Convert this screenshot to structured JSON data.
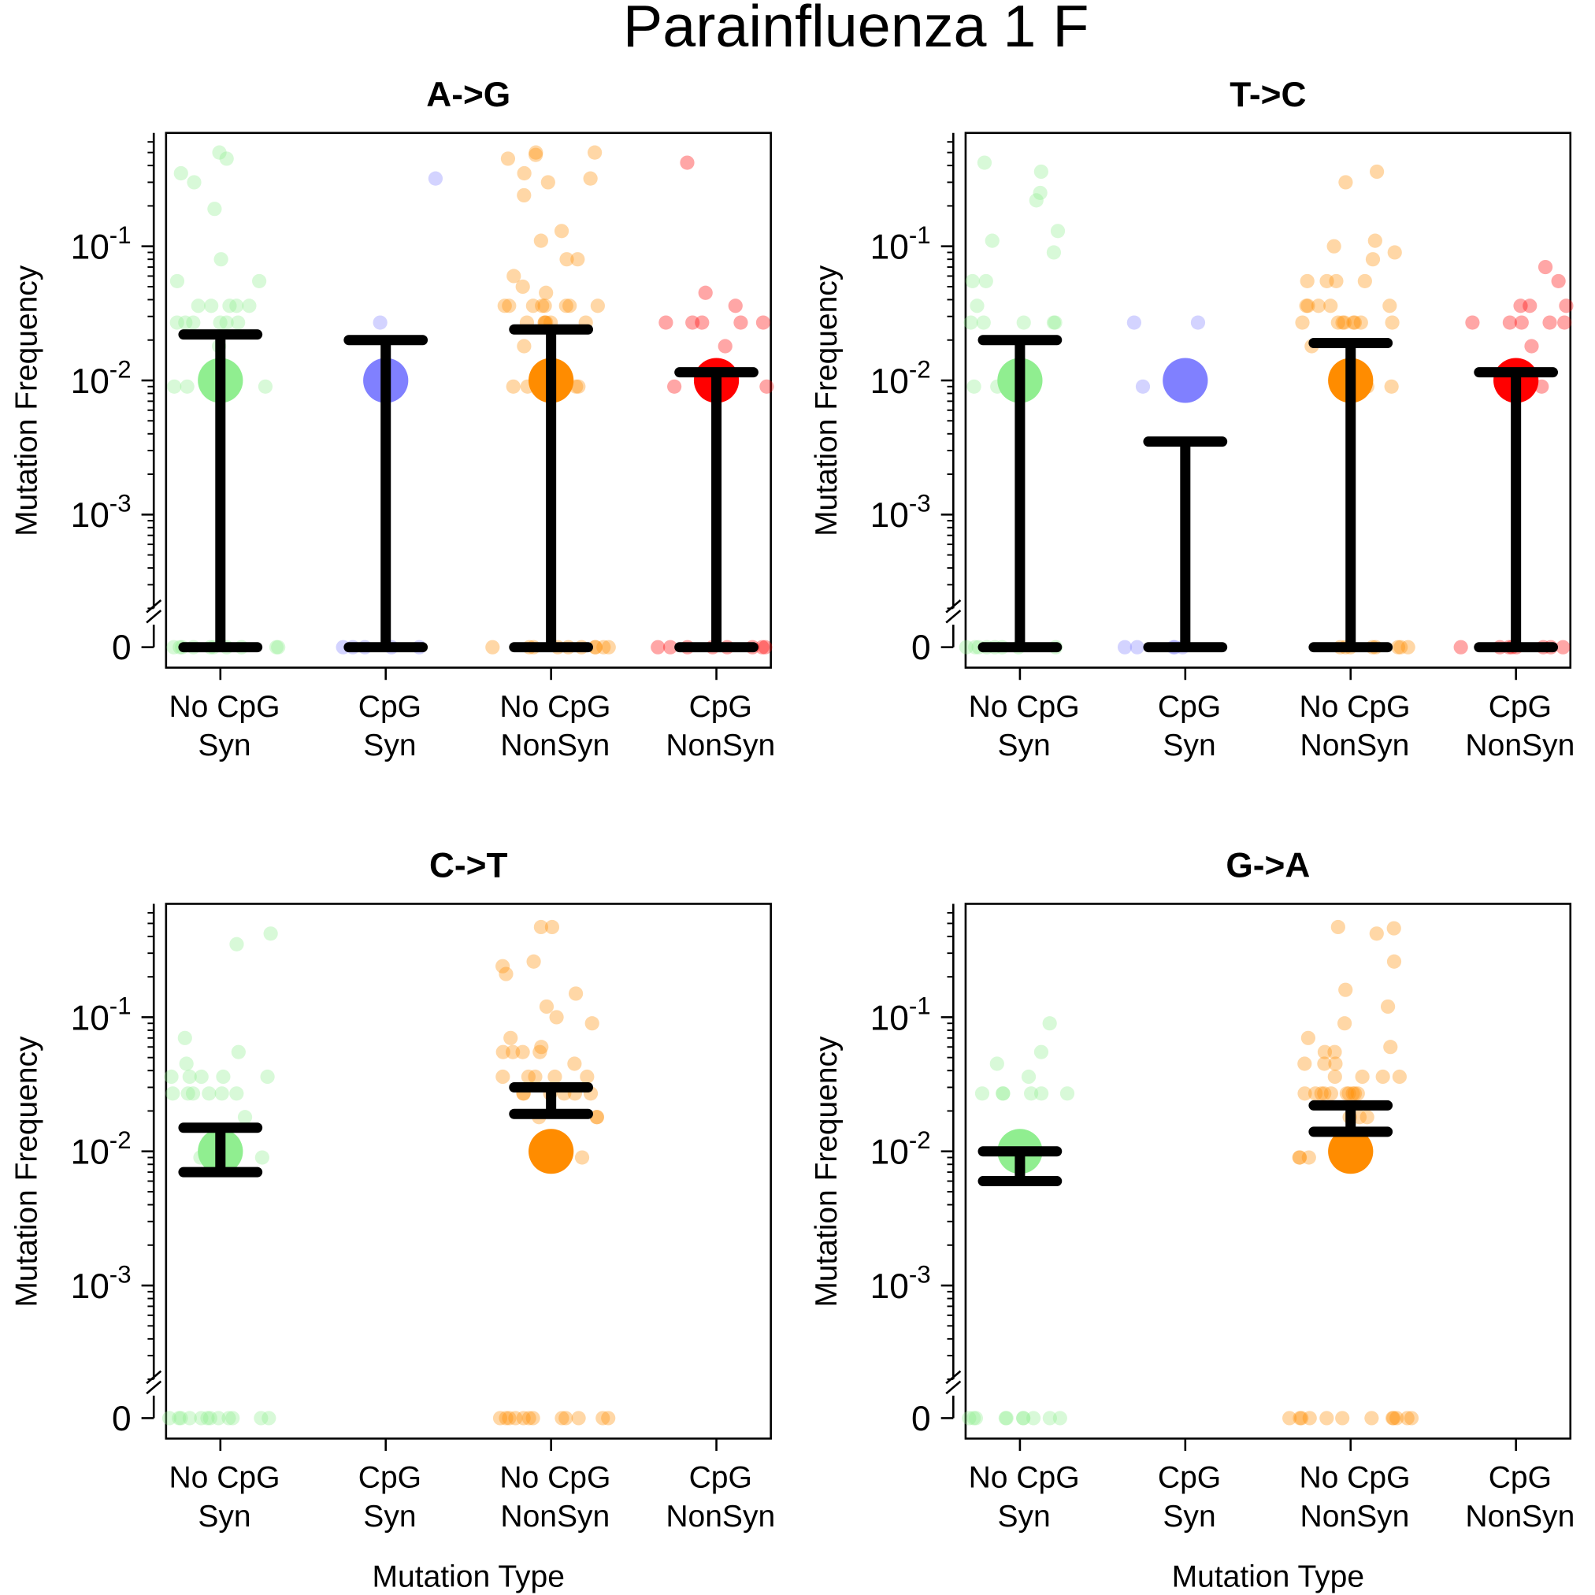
{
  "title": "Parainfluenza 1 F",
  "chart_data": [
    {
      "type": "strip",
      "title": "A->G",
      "ylabel": "Mutation Frequency",
      "log": true,
      "zero_break": true,
      "ylim": [
        0.0002,
        0.7
      ],
      "yticks": [
        0,
        {
          "value": 0.001,
          "label": "10",
          "exponent": "-3"
        },
        {
          "value": 0.01,
          "label": "10",
          "exponent": "-2"
        },
        {
          "value": 0.1,
          "label": "10",
          "exponent": "-1"
        }
      ],
      "categories": [
        [
          "No CpG",
          "Syn"
        ],
        [
          "CpG",
          "Syn"
        ],
        [
          "No CpG",
          "NonSyn"
        ],
        [
          "CpG",
          "NonSyn"
        ]
      ],
      "groups": [
        {
          "color": "#90ee90",
          "mean": 0.01,
          "err_low": 0,
          "err_high": 0.022,
          "points": [
            0.5,
            0.45,
            0.35,
            0.3,
            0.19,
            0.08,
            0.055,
            0.055,
            0.036,
            0.036,
            0.036,
            0.036,
            0.036,
            0.027,
            0.027,
            0.027,
            0.027,
            0.027,
            0.027,
            0.018,
            0.009,
            0.009,
            0.009,
            0,
            0,
            0,
            0,
            0,
            0,
            0,
            0,
            0,
            0
          ]
        },
        {
          "color": "#8080ff",
          "mean": 0.01,
          "err_low": 0,
          "err_high": 0.02,
          "points": [
            0.32,
            0.027,
            0,
            0,
            0,
            0,
            0
          ]
        },
        {
          "color": "#ff8c00",
          "mean": 0.01,
          "err_low": 0,
          "err_high": 0.024,
          "points": [
            0.5,
            0.48,
            0.45,
            0.5,
            0.35,
            0.32,
            0.3,
            0.24,
            0.13,
            0.11,
            0.08,
            0.08,
            0.06,
            0.05,
            0.045,
            0.036,
            0.036,
            0.036,
            0.036,
            0.036,
            0.036,
            0.036,
            0.036,
            0.027,
            0.027,
            0.027,
            0.027,
            0.027,
            0.027,
            0.018,
            0.009,
            0.009,
            0.009,
            0.009,
            0,
            0,
            0,
            0,
            0,
            0,
            0,
            0,
            0,
            0
          ]
        },
        {
          "color": "#ff0000",
          "mean": 0.01,
          "err_low": 0,
          "err_high": 0.0115,
          "points": [
            0.42,
            0.045,
            0.036,
            0.027,
            0.027,
            0.027,
            0.027,
            0.027,
            0.018,
            0.009,
            0.009,
            0.009,
            0.009,
            0,
            0,
            0,
            0,
            0,
            0,
            0,
            0
          ]
        }
      ]
    },
    {
      "type": "strip",
      "title": "T->C",
      "ylabel": "Mutation Frequency",
      "log": true,
      "zero_break": true,
      "ylim": [
        0.0002,
        0.7
      ],
      "yticks": [
        0,
        {
          "value": 0.001,
          "label": "10",
          "exponent": "-3"
        },
        {
          "value": 0.01,
          "label": "10",
          "exponent": "-2"
        },
        {
          "value": 0.1,
          "label": "10",
          "exponent": "-1"
        }
      ],
      "categories": [
        [
          "No CpG",
          "Syn"
        ],
        [
          "CpG",
          "Syn"
        ],
        [
          "No CpG",
          "NonSyn"
        ],
        [
          "CpG",
          "NonSyn"
        ]
      ],
      "groups": [
        {
          "color": "#90ee90",
          "mean": 0.01,
          "err_low": 0,
          "err_high": 0.02,
          "points": [
            0.42,
            0.36,
            0.25,
            0.22,
            0.13,
            0.11,
            0.09,
            0.055,
            0.055,
            0.036,
            0.027,
            0.027,
            0.027,
            0.027,
            0.027,
            0.009,
            0.009,
            0.009,
            0,
            0,
            0,
            0,
            0,
            0,
            0,
            0
          ]
        },
        {
          "color": "#8080ff",
          "mean": 0.01,
          "err_low": 0,
          "err_high": 0.0035,
          "points": [
            0.027,
            0.027,
            0.009,
            0,
            0,
            0,
            0,
            0
          ]
        },
        {
          "color": "#ff8c00",
          "mean": 0.01,
          "err_low": 0,
          "err_high": 0.019,
          "points": [
            0.36,
            0.3,
            0.11,
            0.1,
            0.09,
            0.08,
            0.055,
            0.055,
            0.055,
            0.055,
            0.036,
            0.036,
            0.036,
            0.036,
            0.036,
            0.027,
            0.027,
            0.027,
            0.027,
            0.027,
            0.027,
            0.027,
            0.027,
            0.018,
            0.009,
            0.009,
            0.009,
            0,
            0,
            0,
            0,
            0,
            0,
            0,
            0
          ]
        },
        {
          "color": "#ff0000",
          "mean": 0.01,
          "err_low": 0,
          "err_high": 0.0115,
          "points": [
            0.07,
            0.055,
            0.036,
            0.036,
            0.036,
            0.027,
            0.027,
            0.027,
            0.027,
            0.027,
            0.018,
            0.009,
            0.009,
            0,
            0,
            0,
            0,
            0,
            0,
            0,
            0
          ]
        }
      ]
    },
    {
      "type": "strip",
      "title": "C->T",
      "ylabel": "Mutation Frequency",
      "xlabel": "Mutation Type",
      "log": true,
      "zero_break": true,
      "ylim": [
        0.0002,
        0.7
      ],
      "yticks": [
        0,
        {
          "value": 0.001,
          "label": "10",
          "exponent": "-3"
        },
        {
          "value": 0.01,
          "label": "10",
          "exponent": "-2"
        },
        {
          "value": 0.1,
          "label": "10",
          "exponent": "-1"
        }
      ],
      "categories": [
        [
          "No CpG",
          "Syn"
        ],
        [
          "CpG",
          "Syn"
        ],
        [
          "No CpG",
          "NonSyn"
        ],
        [
          "CpG",
          "NonSyn"
        ]
      ],
      "groups": [
        {
          "color": "#90ee90",
          "mean": 0.01,
          "err_low": 0.007,
          "err_high": 0.015,
          "points": [
            0.42,
            0.35,
            0.07,
            0.055,
            0.045,
            0.036,
            0.036,
            0.036,
            0.036,
            0.036,
            0.027,
            0.027,
            0.027,
            0.027,
            0.027,
            0.027,
            0.018,
            0.009,
            0.009,
            0,
            0,
            0,
            0,
            0,
            0,
            0,
            0,
            0,
            0,
            0,
            0
          ]
        },
        null,
        {
          "color": "#ff8c00",
          "mean": 0.01,
          "err_low": 0.019,
          "err_high": 0.03,
          "points": [
            0.47,
            0.47,
            0.26,
            0.24,
            0.21,
            0.15,
            0.12,
            0.1,
            0.09,
            0.07,
            0.06,
            0.055,
            0.055,
            0.055,
            0.055,
            0.045,
            0.036,
            0.036,
            0.036,
            0.036,
            0.036,
            0.027,
            0.027,
            0.027,
            0.027,
            0.027,
            0.027,
            0.018,
            0.018,
            0.018,
            0.009,
            0.009,
            0,
            0,
            0,
            0,
            0,
            0,
            0,
            0,
            0,
            0,
            0,
            0
          ]
        },
        null
      ]
    },
    {
      "type": "strip",
      "title": "G->A",
      "ylabel": "Mutation Frequency",
      "xlabel": "Mutation Type",
      "log": true,
      "zero_break": true,
      "ylim": [
        0.0002,
        0.7
      ],
      "yticks": [
        0,
        {
          "value": 0.001,
          "label": "10",
          "exponent": "-3"
        },
        {
          "value": 0.01,
          "label": "10",
          "exponent": "-2"
        },
        {
          "value": 0.1,
          "label": "10",
          "exponent": "-1"
        }
      ],
      "categories": [
        [
          "No CpG",
          "Syn"
        ],
        [
          "CpG",
          "Syn"
        ],
        [
          "No CpG",
          "NonSyn"
        ],
        [
          "CpG",
          "NonSyn"
        ]
      ],
      "groups": [
        {
          "color": "#90ee90",
          "mean": 0.01,
          "err_low": 0.006,
          "err_high": 0.01,
          "points": [
            0.09,
            0.055,
            0.045,
            0.036,
            0.027,
            0.027,
            0.027,
            0.027,
            0.027,
            0.027,
            0.009,
            0.009,
            0,
            0,
            0,
            0,
            0,
            0,
            0,
            0,
            0,
            0
          ]
        },
        null,
        {
          "color": "#ff8c00",
          "mean": 0.01,
          "err_low": 0.014,
          "err_high": 0.022,
          "points": [
            0.47,
            0.46,
            0.42,
            0.26,
            0.16,
            0.12,
            0.09,
            0.07,
            0.06,
            0.055,
            0.055,
            0.045,
            0.045,
            0.045,
            0.036,
            0.036,
            0.036,
            0.036,
            0.027,
            0.027,
            0.027,
            0.027,
            0.027,
            0.027,
            0.027,
            0.027,
            0.027,
            0.027,
            0.018,
            0.018,
            0.018,
            0.009,
            0.009,
            0.009,
            0.009,
            0.009,
            0.009,
            0,
            0,
            0,
            0,
            0,
            0,
            0,
            0,
            0,
            0,
            0,
            0
          ]
        },
        null
      ]
    }
  ]
}
